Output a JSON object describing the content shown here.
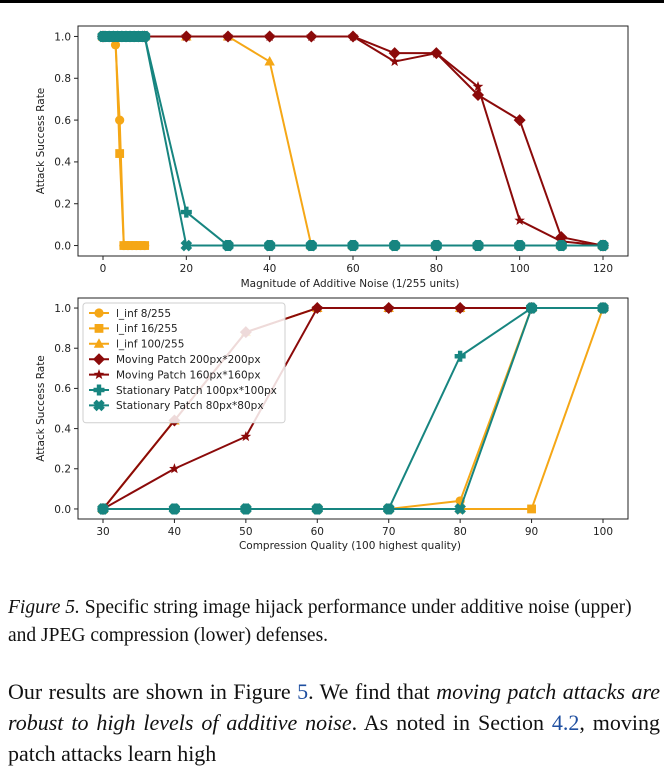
{
  "caption": {
    "label": "Figure 5.",
    "text": "Specific string image hijack performance under additive noise (upper) and JPEG compression (lower) defenses."
  },
  "body": {
    "t1": "Our results are shown in Figure ",
    "ref1": "5",
    "t2": ".  We find that ",
    "em1": "moving patch attacks are robust to high levels of additive noise",
    "t3": ". As noted in Section ",
    "ref2": "4.2",
    "t4": ", moving patch attacks learn high"
  },
  "colors": {
    "orange": "#f5a716",
    "darkred": "#8b0a0a",
    "teal": "#178580"
  },
  "chart_data": [
    {
      "type": "line",
      "xlabel": "Magnitude of Additive Noise (1/255 units)",
      "ylabel": "Attack Success Rate",
      "xlim": [
        -6,
        126
      ],
      "ylim": [
        -0.05,
        1.05
      ],
      "xticks": [
        0,
        20,
        40,
        60,
        80,
        100,
        120
      ],
      "xtick_labels": [
        "0",
        "20",
        "40",
        "60",
        "80",
        "100",
        "120"
      ],
      "yticks": [
        0.0,
        0.2,
        0.4,
        0.6,
        0.8,
        1.0
      ],
      "ytick_labels": [
        "0.0",
        "0.2",
        "0.4",
        "0.6",
        "0.8",
        "1.0"
      ],
      "grid": false,
      "series": [
        {
          "name": "l_inf 8/255",
          "color": "#f5a716",
          "marker": "circle",
          "x": [
            0,
            1,
            2,
            3,
            4,
            5,
            6,
            7,
            8,
            9,
            10
          ],
          "y": [
            1.0,
            1.0,
            1.0,
            0.96,
            0.6,
            0,
            0,
            0,
            0,
            0,
            0
          ]
        },
        {
          "name": "l_inf 16/255",
          "color": "#f5a716",
          "marker": "square",
          "x": [
            0,
            1,
            2,
            3,
            4,
            5,
            6,
            7,
            8,
            9,
            10
          ],
          "y": [
            1.0,
            1.0,
            1.0,
            1.0,
            0.44,
            0,
            0,
            0,
            0,
            0,
            0
          ]
        },
        {
          "name": "l_inf 100/255",
          "color": "#f5a716",
          "marker": "triangle",
          "x": [
            0,
            1,
            2,
            3,
            4,
            5,
            6,
            7,
            8,
            9,
            10,
            20,
            30,
            40,
            50,
            60,
            70,
            80,
            90,
            100,
            110,
            120
          ],
          "y": [
            1,
            1,
            1,
            1,
            1,
            1,
            1,
            1,
            1,
            1,
            1,
            1.0,
            1.0,
            0.88,
            0,
            0,
            0,
            0,
            0,
            0,
            0,
            0
          ]
        },
        {
          "name": "Moving Patch 200px*200px",
          "color": "#8b0a0a",
          "marker": "diamond",
          "x": [
            0,
            10,
            20,
            30,
            40,
            50,
            60,
            70,
            80,
            90,
            100,
            110,
            120
          ],
          "y": [
            1.0,
            1.0,
            1.0,
            1.0,
            1.0,
            1.0,
            1.0,
            0.92,
            0.92,
            0.72,
            0.6,
            0.04,
            0.0
          ]
        },
        {
          "name": "Moving Patch 160px*160px",
          "color": "#8b0a0a",
          "marker": "star",
          "x": [
            0,
            10,
            20,
            30,
            40,
            50,
            60,
            70,
            80,
            90,
            100,
            110,
            120
          ],
          "y": [
            1.0,
            1.0,
            1.0,
            1.0,
            1.0,
            1.0,
            1.0,
            0.88,
            0.92,
            0.76,
            0.12,
            0.02,
            0.0
          ]
        },
        {
          "name": "Stationary Patch 100px*100px",
          "color": "#178580",
          "marker": "plus",
          "x": [
            0,
            1,
            2,
            3,
            4,
            5,
            6,
            7,
            8,
            9,
            10,
            20,
            30,
            40,
            50,
            60,
            70,
            80,
            90,
            100,
            110,
            120
          ],
          "y": [
            1,
            1,
            1,
            1,
            1,
            1,
            1,
            1,
            1,
            1,
            1,
            0.16,
            0,
            0,
            0,
            0,
            0,
            0,
            0,
            0,
            0,
            0
          ]
        },
        {
          "name": "Stationary Patch 80px*80px",
          "color": "#178580",
          "marker": "xfilled",
          "x": [
            0,
            1,
            2,
            3,
            4,
            5,
            6,
            7,
            8,
            9,
            10,
            20,
            30,
            40,
            50,
            60,
            70,
            80,
            90,
            100,
            110,
            120
          ],
          "y": [
            1,
            1,
            1,
            1,
            1,
            1,
            1,
            1,
            1,
            1,
            1,
            0,
            0,
            0,
            0,
            0,
            0,
            0,
            0,
            0,
            0,
            0
          ]
        }
      ]
    },
    {
      "type": "line",
      "xlabel": "Compression Quality (100 highest quality)",
      "ylabel": "Attack Success Rate",
      "xlim": [
        26.5,
        103.5
      ],
      "ylim": [
        -0.05,
        1.05
      ],
      "xticks": [
        30,
        40,
        50,
        60,
        70,
        80,
        90,
        100
      ],
      "xtick_labels": [
        "30",
        "40",
        "50",
        "60",
        "70",
        "80",
        "90",
        "100"
      ],
      "yticks": [
        0.0,
        0.2,
        0.4,
        0.6,
        0.8,
        1.0
      ],
      "ytick_labels": [
        "0.0",
        "0.2",
        "0.4",
        "0.6",
        "0.8",
        "1.0"
      ],
      "grid": false,
      "legend": "upper-left",
      "series": [
        {
          "name": "l_inf 8/255",
          "color": "#f5a716",
          "marker": "circle",
          "x": [
            30,
            40,
            50,
            60,
            70,
            80,
            90,
            100
          ],
          "y": [
            0,
            0,
            0,
            0,
            0,
            0.04,
            1.0,
            1.0
          ]
        },
        {
          "name": "l_inf 16/255",
          "color": "#f5a716",
          "marker": "square",
          "x": [
            30,
            40,
            50,
            60,
            70,
            80,
            90,
            100
          ],
          "y": [
            0,
            0,
            0,
            0,
            0,
            0,
            0,
            1.0
          ]
        },
        {
          "name": "l_inf 100/255",
          "color": "#f5a716",
          "marker": "triangle",
          "x": [
            30,
            40,
            50,
            60,
            70,
            80,
            90,
            100
          ],
          "y": [
            0,
            0.44,
            0.88,
            1.0,
            1.0,
            1.0,
            1.0,
            1.0
          ]
        },
        {
          "name": "Moving Patch 200px*200px",
          "color": "#8b0a0a",
          "marker": "diamond",
          "x": [
            30,
            40,
            50,
            60,
            70,
            80,
            90,
            100
          ],
          "y": [
            0,
            0.44,
            0.88,
            1.0,
            1.0,
            1.0,
            1.0,
            1.0
          ]
        },
        {
          "name": "Moving Patch 160px*160px",
          "color": "#8b0a0a",
          "marker": "star",
          "x": [
            30,
            40,
            50,
            60,
            70,
            80,
            90,
            100
          ],
          "y": [
            0,
            0.2,
            0.36,
            1.0,
            1.0,
            1.0,
            1.0,
            1.0
          ]
        },
        {
          "name": "Stationary Patch 100px*100px",
          "color": "#178580",
          "marker": "plus",
          "x": [
            30,
            40,
            50,
            60,
            70,
            80,
            90,
            100
          ],
          "y": [
            0,
            0,
            0,
            0,
            0,
            0.76,
            1.0,
            1.0
          ]
        },
        {
          "name": "Stationary Patch 80px*80px",
          "color": "#178580",
          "marker": "xfilled",
          "x": [
            30,
            40,
            50,
            60,
            70,
            80,
            90,
            100
          ],
          "y": [
            0,
            0,
            0,
            0,
            0,
            0,
            1.0,
            1.0
          ]
        }
      ]
    }
  ]
}
